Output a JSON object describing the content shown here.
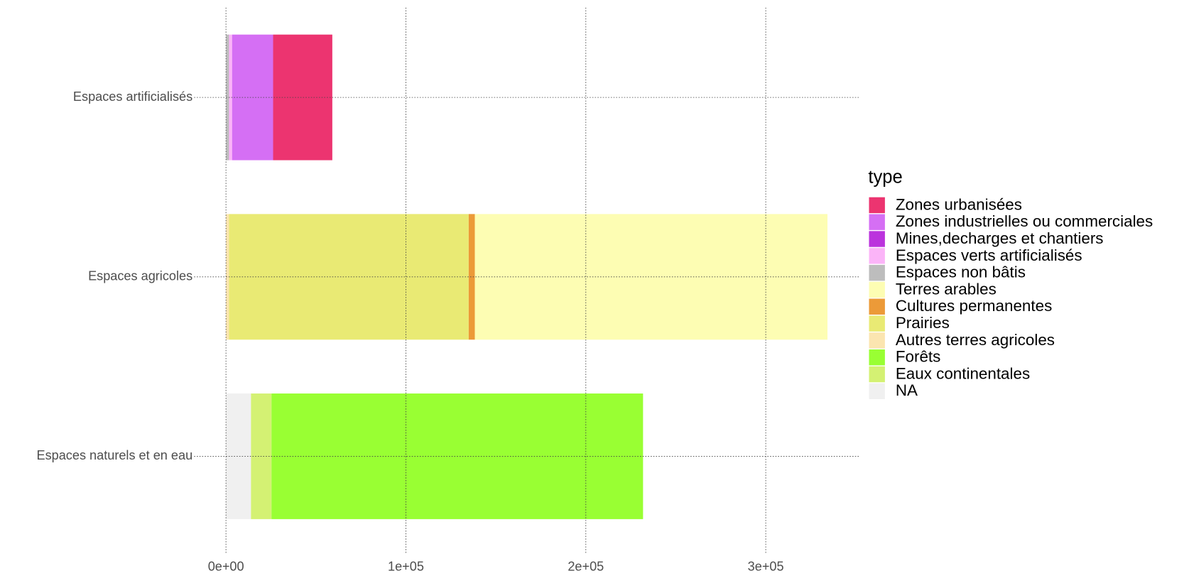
{
  "chart_data": {
    "type": "stacked_barh",
    "categories": [
      "Espaces artificialisés",
      "Espaces agricoles",
      "Espaces naturels et en eau"
    ],
    "legend_title": "type",
    "series": [
      {
        "name": "Zones urbanisées",
        "color": "#ec3470",
        "values": [
          32900,
          null,
          null
        ]
      },
      {
        "name": "Zones industrielles ou commerciales",
        "color": "#d56ff4",
        "values": [
          22800,
          null,
          null
        ]
      },
      {
        "name": "Mines,decharges et chantiers",
        "color": "#bb33dd",
        "values": [
          null,
          null,
          null
        ]
      },
      {
        "name": "Espaces verts artificialisés",
        "color": "#fbb4f8",
        "values": [
          1700,
          null,
          null
        ]
      },
      {
        "name": "Espaces non bâtis",
        "color": "#bdbdbd",
        "values": [
          1700,
          null,
          null
        ]
      },
      {
        "name": "Terres arables",
        "color": "#fdfdb3",
        "values": [
          null,
          196000,
          null
        ]
      },
      {
        "name": "Cultures permanentes",
        "color": "#ec9a38",
        "values": [
          null,
          3400,
          null
        ]
      },
      {
        "name": "Prairies",
        "color": "#e9ea74",
        "values": [
          null,
          133200,
          null
        ]
      },
      {
        "name": "Autres terres agricoles",
        "color": "#fbe5b0",
        "values": [
          null,
          1700,
          null
        ]
      },
      {
        "name": "Forêts",
        "color": "#99ff33",
        "values": [
          null,
          null,
          206500
        ]
      },
      {
        "name": "Eaux continentales",
        "color": "#d4f173",
        "values": [
          null,
          null,
          11400
        ]
      },
      {
        "name": "NA",
        "color": "#f0f0f0",
        "values": [
          null,
          null,
          13900
        ]
      }
    ],
    "xlim": [
      -17700,
      351900
    ],
    "xticks": [
      {
        "value": 0,
        "label": "0e+00"
      },
      {
        "value": 100000,
        "label": "1e+05"
      },
      {
        "value": 200000,
        "label": "2e+05"
      },
      {
        "value": 300000,
        "label": "3e+05"
      }
    ],
    "grid": true,
    "legend_position": "right"
  }
}
